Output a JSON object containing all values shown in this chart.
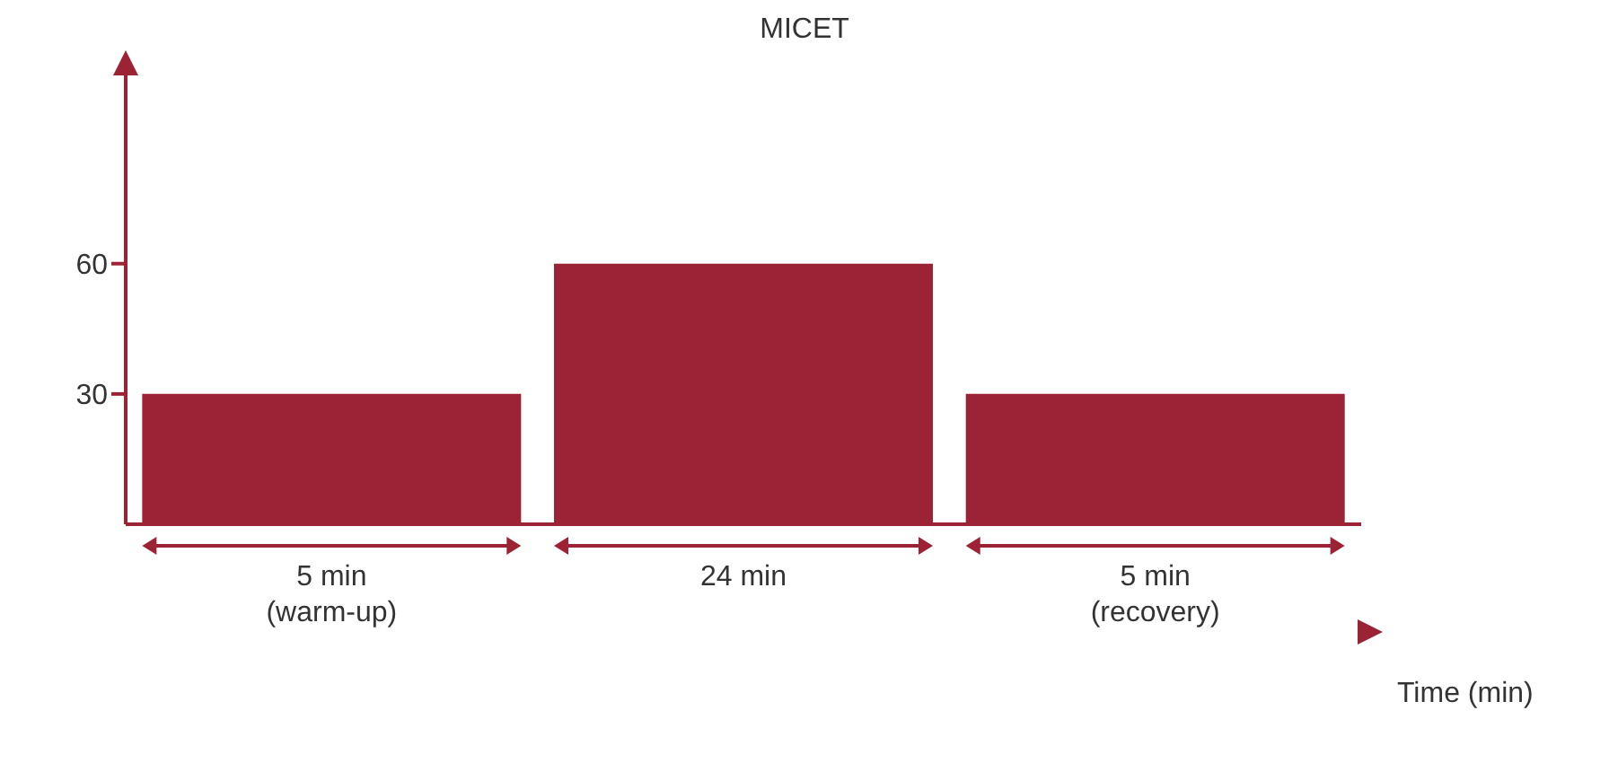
{
  "chart_data": {
    "type": "bar",
    "title": "MICET",
    "xlabel": "Time (min)",
    "categories": [
      "5 min\n(warm-up)",
      "24 min",
      "5 min\n(recovery)"
    ],
    "values": [
      30,
      60,
      30
    ],
    "color": "#9b2335",
    "ylim": [
      0,
      105
    ],
    "yticks": [
      30,
      60
    ],
    "grid": false
  }
}
